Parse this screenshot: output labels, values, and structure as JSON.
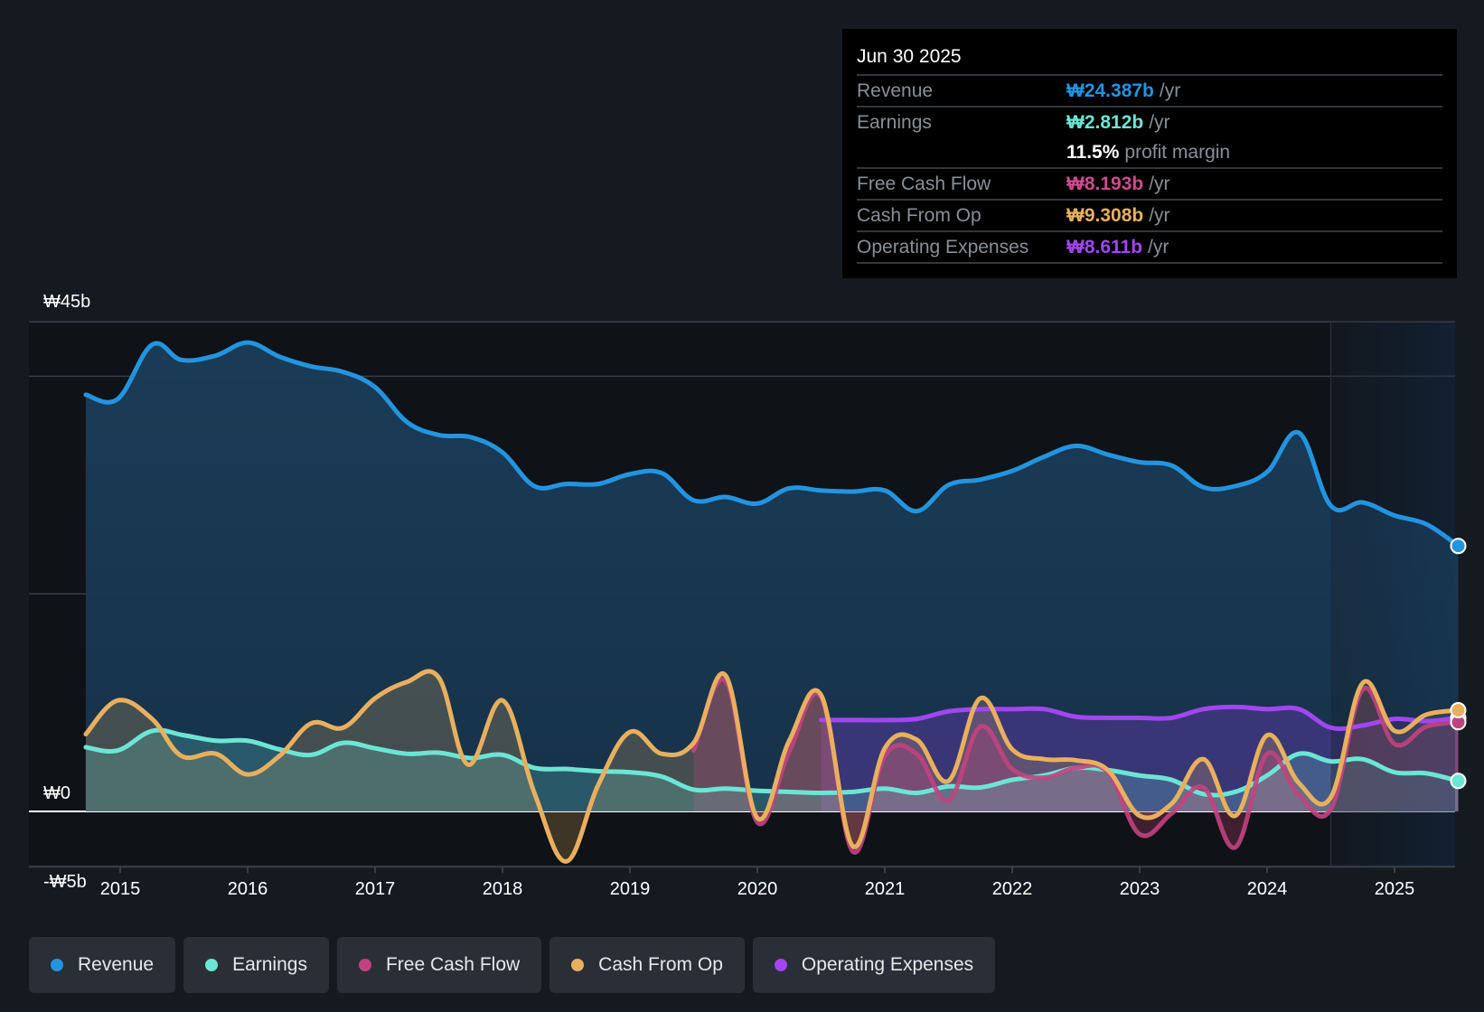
{
  "tooltip": {
    "date": "Jun 30 2025",
    "rows": [
      {
        "label": "Revenue",
        "value": "₩24.387b",
        "unit": "/yr",
        "color": "#2394df"
      },
      {
        "label": "Earnings",
        "value": "₩2.812b",
        "unit": "/yr",
        "color": "#6ce5d4"
      },
      {
        "label": "",
        "value": "11.5%",
        "unit": "profit margin",
        "color": "#ffffff"
      },
      {
        "label": "Free Cash Flow",
        "value": "₩8.193b",
        "unit": "/yr",
        "color": "#cc4b8e"
      },
      {
        "label": "Cash From Op",
        "value": "₩9.308b",
        "unit": "/yr",
        "color": "#e8b05e"
      },
      {
        "label": "Operating Expenses",
        "value": "₩8.611b",
        "unit": "/yr",
        "color": "#a146f0"
      }
    ]
  },
  "legend": [
    {
      "label": "Revenue",
      "color": "#2394df"
    },
    {
      "label": "Earnings",
      "color": "#6ce5d4"
    },
    {
      "label": "Free Cash Flow",
      "color": "#c2427f"
    },
    {
      "label": "Cash From Op",
      "color": "#e8b05e"
    },
    {
      "label": "Operating Expenses",
      "color": "#a146f0"
    }
  ],
  "chart_data": {
    "type": "area",
    "title": "",
    "xlabel": "",
    "ylabel": "",
    "ylim": [
      -5,
      45
    ],
    "y_unit": "₩ billions",
    "y_tick_labels": [
      {
        "value": 45,
        "label": "₩45b"
      },
      {
        "value": 0,
        "label": "₩0"
      },
      {
        "value": -5,
        "label": "-₩5b"
      }
    ],
    "gridlines_at": [
      45,
      40,
      20,
      0
    ],
    "x_tick_labels": [
      "2015",
      "2016",
      "2017",
      "2018",
      "2019",
      "2020",
      "2021",
      "2022",
      "2023",
      "2024",
      "2025"
    ],
    "xlim": [
      2014.5,
      2025.5
    ],
    "forecast_shade_from": 2024.5,
    "grid": true,
    "legend_position": "bottom",
    "series": [
      {
        "name": "Revenue",
        "color": "#2394df",
        "x": [
          2014.73,
          2014.98,
          2015.25,
          2015.48,
          2015.75,
          2016.0,
          2016.25,
          2016.5,
          2016.75,
          2017.0,
          2017.25,
          2017.5,
          2017.75,
          2018.0,
          2018.25,
          2018.5,
          2018.75,
          2019.0,
          2019.25,
          2019.5,
          2019.75,
          2020.0,
          2020.25,
          2020.5,
          2020.75,
          2021.0,
          2021.25,
          2021.5,
          2021.75,
          2022.0,
          2022.25,
          2022.5,
          2022.75,
          2023.0,
          2023.25,
          2023.5,
          2023.75,
          2024.0,
          2024.25,
          2024.5,
          2024.75,
          2025.0,
          2025.25,
          2025.5
        ],
        "values": [
          38.3,
          37.9,
          42.9,
          41.5,
          41.9,
          43.1,
          41.8,
          40.9,
          40.4,
          39.0,
          35.8,
          34.6,
          34.4,
          33.0,
          29.9,
          30.1,
          30.1,
          31.0,
          31.1,
          28.6,
          28.9,
          28.3,
          29.7,
          29.5,
          29.4,
          29.5,
          27.6,
          30.0,
          30.5,
          31.3,
          32.6,
          33.6,
          32.8,
          32.1,
          31.8,
          29.8,
          29.9,
          31.2,
          34.8,
          28.1,
          28.4,
          27.2,
          26.4,
          24.4
        ]
      },
      {
        "name": "Earnings",
        "color": "#6ce5d4",
        "x": [
          2014.73,
          2014.98,
          2015.25,
          2015.5,
          2015.75,
          2016.0,
          2016.25,
          2016.5,
          2016.75,
          2017.0,
          2017.25,
          2017.5,
          2017.75,
          2018.0,
          2018.25,
          2018.5,
          2018.75,
          2019.0,
          2019.25,
          2019.5,
          2019.75,
          2020.0,
          2020.25,
          2020.5,
          2020.75,
          2021.0,
          2021.25,
          2021.5,
          2021.75,
          2022.0,
          2022.25,
          2022.5,
          2022.75,
          2023.0,
          2023.25,
          2023.5,
          2023.75,
          2024.0,
          2024.25,
          2024.5,
          2024.75,
          2025.0,
          2025.25,
          2025.5
        ],
        "values": [
          5.9,
          5.6,
          7.4,
          7.0,
          6.5,
          6.5,
          5.7,
          5.2,
          6.3,
          5.8,
          5.3,
          5.4,
          4.9,
          5.2,
          4.0,
          3.9,
          3.7,
          3.6,
          3.2,
          2.0,
          2.1,
          1.9,
          1.8,
          1.7,
          1.8,
          2.1,
          1.7,
          2.3,
          2.2,
          2.9,
          3.3,
          4.0,
          3.8,
          3.3,
          2.9,
          1.6,
          1.8,
          3.3,
          5.3,
          4.6,
          4.8,
          3.6,
          3.5,
          2.8
        ]
      },
      {
        "name": "Free Cash Flow",
        "color": "#c2427f",
        "x": [
          2019.5,
          2019.75,
          2020.0,
          2020.25,
          2020.5,
          2020.75,
          2021.0,
          2021.25,
          2021.5,
          2021.75,
          2022.0,
          2022.25,
          2022.5,
          2022.75,
          2023.0,
          2023.25,
          2023.5,
          2023.75,
          2024.0,
          2024.25,
          2024.5,
          2024.75,
          2025.0,
          2025.25,
          2025.5
        ],
        "values": [
          5.6,
          12.0,
          -1.0,
          5.5,
          10.5,
          -3.7,
          5.1,
          5.3,
          1.0,
          7.8,
          3.9,
          3.1,
          4.0,
          3.6,
          -2.1,
          -0.2,
          2.2,
          -3.3,
          5.3,
          1.5,
          0.2,
          11.2,
          6.2,
          7.8,
          8.2
        ]
      },
      {
        "name": "Cash From Op",
        "color": "#e8b05e",
        "x": [
          2014.73,
          2014.98,
          2015.25,
          2015.48,
          2015.75,
          2016.0,
          2016.25,
          2016.5,
          2016.75,
          2017.0,
          2017.25,
          2017.5,
          2017.73,
          2018.0,
          2018.25,
          2018.5,
          2018.75,
          2019.0,
          2019.25,
          2019.5,
          2019.75,
          2020.0,
          2020.25,
          2020.5,
          2020.75,
          2021.0,
          2021.25,
          2021.5,
          2021.75,
          2022.0,
          2022.25,
          2022.5,
          2022.75,
          2023.0,
          2023.25,
          2023.5,
          2023.75,
          2024.0,
          2024.25,
          2024.5,
          2024.75,
          2025.0,
          2025.25,
          2025.5
        ],
        "values": [
          7.1,
          10.2,
          8.5,
          5.1,
          5.3,
          3.4,
          5.1,
          8.1,
          7.7,
          10.4,
          11.9,
          12.3,
          4.3,
          10.2,
          1.7,
          -4.6,
          2.4,
          7.3,
          5.3,
          6.3,
          12.5,
          -0.6,
          6.5,
          10.7,
          -3.2,
          5.8,
          6.6,
          2.8,
          10.4,
          5.7,
          4.8,
          4.7,
          3.8,
          -0.4,
          0.7,
          4.8,
          -0.4,
          7.0,
          2.6,
          1.3,
          11.8,
          7.4,
          8.9,
          9.3
        ]
      },
      {
        "name": "Operating Expenses",
        "color": "#a146f0",
        "x": [
          2020.5,
          2020.75,
          2021.0,
          2021.25,
          2021.5,
          2021.75,
          2022.0,
          2022.25,
          2022.5,
          2022.75,
          2023.0,
          2023.25,
          2023.5,
          2023.75,
          2024.0,
          2024.25,
          2024.5,
          2024.75,
          2025.0,
          2025.25,
          2025.5
        ],
        "values": [
          8.4,
          8.4,
          8.4,
          8.5,
          9.2,
          9.4,
          9.4,
          9.4,
          8.7,
          8.6,
          8.6,
          8.6,
          9.4,
          9.6,
          9.4,
          9.4,
          7.7,
          7.9,
          8.5,
          8.3,
          8.6
        ]
      }
    ]
  }
}
